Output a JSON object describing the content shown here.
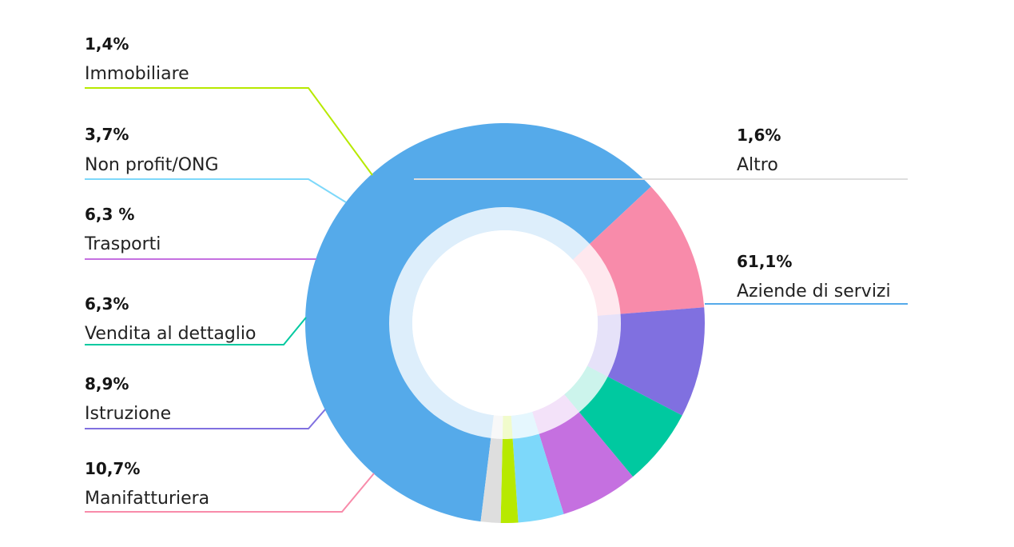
{
  "chart_data": {
    "type": "pie",
    "donut": true,
    "legend": "callout-labels",
    "slices": [
      {
        "category": "Aziende di servizi",
        "label": "61,1%",
        "value": 61.1,
        "color": "#55AAEA"
      },
      {
        "category": "Manifatturiera",
        "label": "10,7%",
        "value": 10.7,
        "color": "#F88BAA"
      },
      {
        "category": "Istruzione",
        "label": "8,9%",
        "value": 8.9,
        "color": "#8070E0"
      },
      {
        "category": "Vendita al dettaglio",
        "label": "6,3%",
        "value": 6.3,
        "color": "#00C9A0"
      },
      {
        "category": "Trasporti",
        "label": "6,3 %",
        "value": 6.3,
        "color": "#C570E0"
      },
      {
        "category": "Non profit/ONG",
        "label": "3,7%",
        "value": 3.7,
        "color": "#7DD8FA"
      },
      {
        "category": "Immobiliare",
        "label": "1,4%",
        "value": 1.4,
        "color": "#B7E900"
      },
      {
        "category": "Altro",
        "label": "1,6%",
        "value": 1.6,
        "color": "#DEDEDE"
      }
    ]
  }
}
